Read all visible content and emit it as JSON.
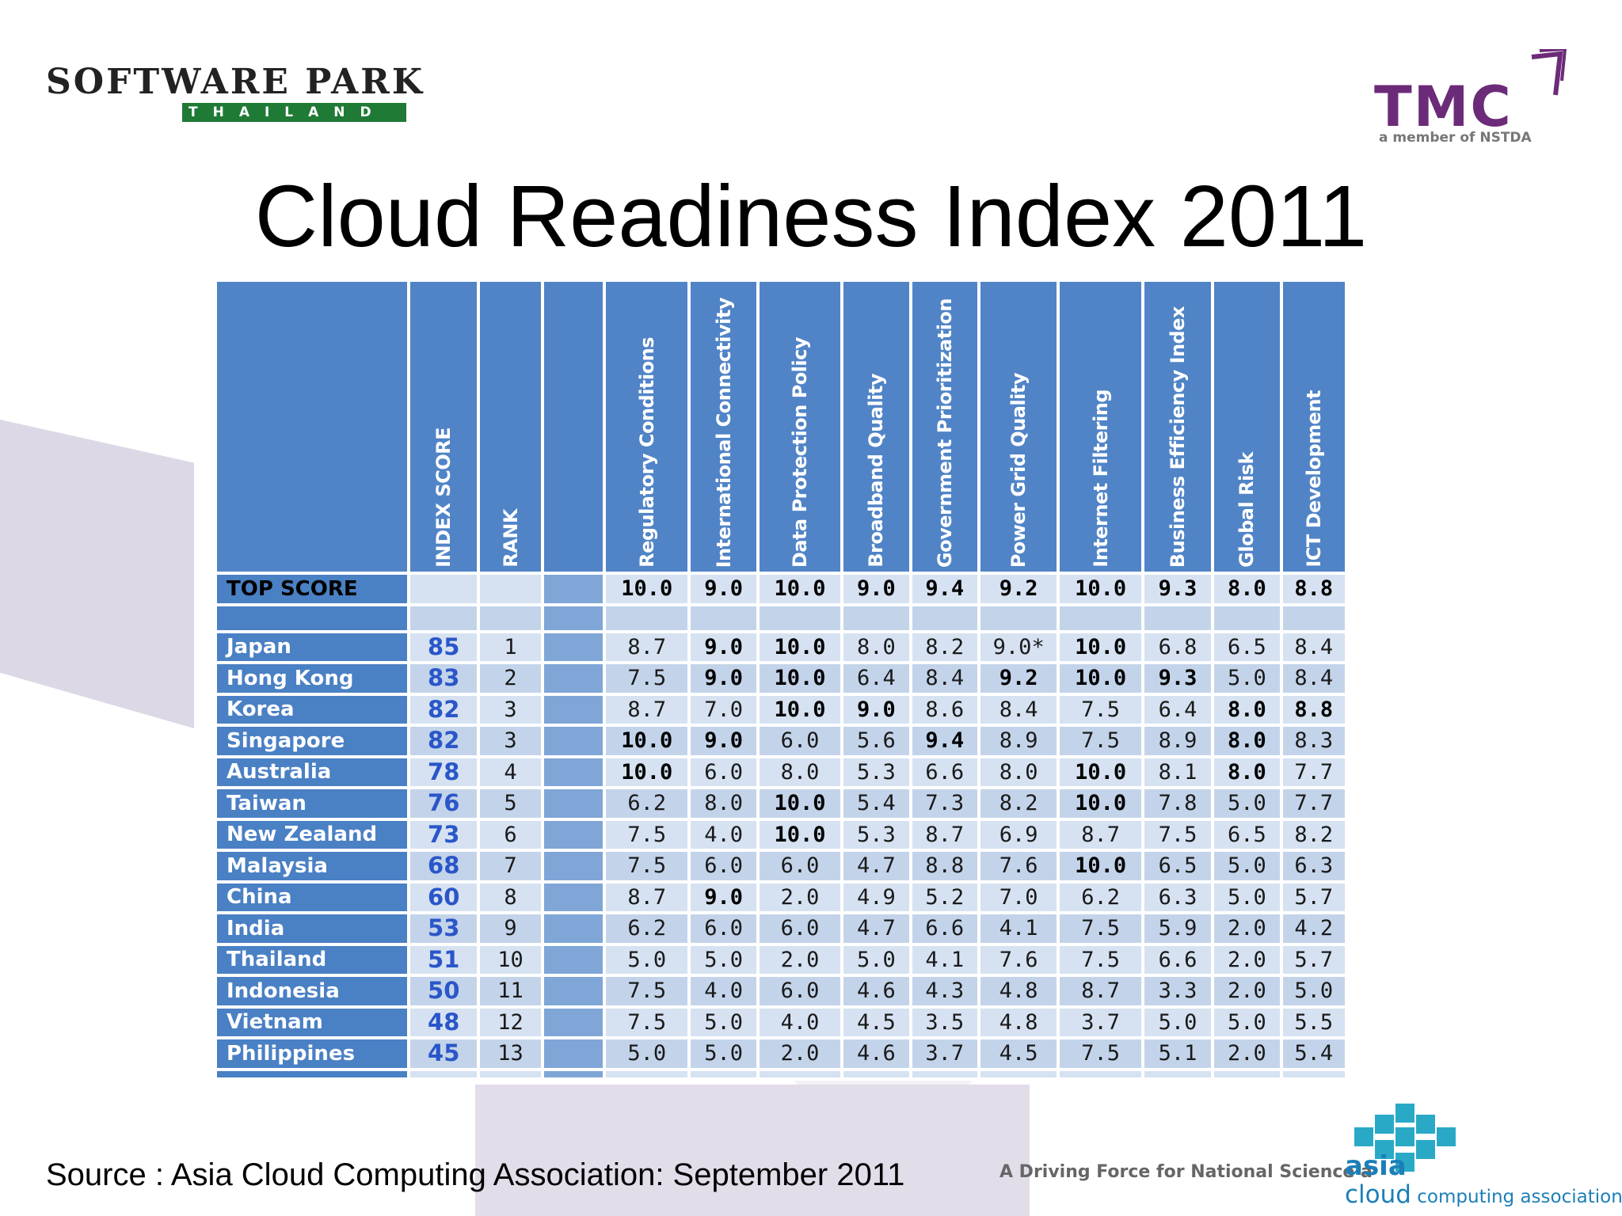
{
  "title": "Cloud Readiness Index 2011",
  "logos": {
    "software_park": {
      "main": "SOFTWARE PARK",
      "sub": "THAILAND"
    },
    "tmc": {
      "word": "TMC",
      "sub": "a member of NSTDA"
    },
    "acca": {
      "asia": "asia",
      "cloud": "cloud",
      "rest": " computing association"
    }
  },
  "table": {
    "headers": [
      "INDEX SCORE",
      "RANK",
      "",
      "Regulatory Conditions",
      "International Connectivity",
      "Data Protection Policy",
      "Broadband Quality",
      "Government Prioritization",
      "Power Grid Quality",
      "Internet Filtering",
      "Business Efficiency Index",
      "Global Risk",
      "ICT Development"
    ],
    "top_score": {
      "label": "TOP SCORE",
      "values": [
        "10.0",
        "9.0",
        "10.0",
        "9.0",
        "9.4",
        "9.2",
        "10.0",
        "9.3",
        "8.0",
        "8.8"
      ]
    },
    "rows": [
      {
        "country": "Japan",
        "score": "85",
        "rank": "1",
        "values": [
          "8.7",
          "9.0",
          "10.0",
          "8.0",
          "8.2",
          "9.0*",
          "10.0",
          "6.8",
          "6.5",
          "8.4"
        ]
      },
      {
        "country": "Hong Kong",
        "score": "83",
        "rank": "2",
        "values": [
          "7.5",
          "9.0",
          "10.0",
          "6.4",
          "8.4",
          "9.2",
          "10.0",
          "9.3",
          "5.0",
          "8.4"
        ]
      },
      {
        "country": "Korea",
        "score": "82",
        "rank": "3",
        "values": [
          "8.7",
          "7.0",
          "10.0",
          "9.0",
          "8.6",
          "8.4",
          "7.5",
          "6.4",
          "8.0",
          "8.8"
        ]
      },
      {
        "country": "Singapore",
        "score": "82",
        "rank": "3",
        "values": [
          "10.0",
          "9.0",
          "6.0",
          "5.6",
          "9.4",
          "8.9",
          "7.5",
          "8.9",
          "8.0",
          "8.3"
        ]
      },
      {
        "country": "Australia",
        "score": "78",
        "rank": "4",
        "values": [
          "10.0",
          "6.0",
          "8.0",
          "5.3",
          "6.6",
          "8.0",
          "10.0",
          "8.1",
          "8.0",
          "7.7"
        ]
      },
      {
        "country": "Taiwan",
        "score": "76",
        "rank": "5",
        "values": [
          "6.2",
          "8.0",
          "10.0",
          "5.4",
          "7.3",
          "8.2",
          "10.0",
          "7.8",
          "5.0",
          "7.7"
        ]
      },
      {
        "country": "New Zealand",
        "score": "73",
        "rank": "6",
        "values": [
          "7.5",
          "4.0",
          "10.0",
          "5.3",
          "8.7",
          "6.9",
          "8.7",
          "7.5",
          "6.5",
          "8.2"
        ]
      },
      {
        "country": "Malaysia",
        "score": "68",
        "rank": "7",
        "values": [
          "7.5",
          "6.0",
          "6.0",
          "4.7",
          "8.8",
          "7.6",
          "10.0",
          "6.5",
          "5.0",
          "6.3"
        ]
      },
      {
        "country": "China",
        "score": "60",
        "rank": "8",
        "values": [
          "8.7",
          "9.0",
          "2.0",
          "4.9",
          "5.2",
          "7.0",
          "6.2",
          "6.3",
          "5.0",
          "5.7"
        ]
      },
      {
        "country": "India",
        "score": "53",
        "rank": "9",
        "values": [
          "6.2",
          "6.0",
          "6.0",
          "4.7",
          "6.6",
          "4.1",
          "7.5",
          "5.9",
          "2.0",
          "4.2"
        ]
      },
      {
        "country": "Thailand",
        "score": "51",
        "rank": "10",
        "values": [
          "5.0",
          "5.0",
          "2.0",
          "5.0",
          "4.1",
          "7.6",
          "7.5",
          "6.6",
          "2.0",
          "5.7"
        ]
      },
      {
        "country": "Indonesia",
        "score": "50",
        "rank": "11",
        "values": [
          "7.5",
          "4.0",
          "6.0",
          "4.6",
          "4.3",
          "4.8",
          "8.7",
          "3.3",
          "2.0",
          "5.0"
        ]
      },
      {
        "country": "Vietnam",
        "score": "48",
        "rank": "12",
        "values": [
          "7.5",
          "5.0",
          "4.0",
          "4.5",
          "3.5",
          "4.8",
          "3.7",
          "5.0",
          "5.0",
          "5.5"
        ]
      },
      {
        "country": "Philippines",
        "score": "45",
        "rank": "13",
        "values": [
          "5.0",
          "5.0",
          "2.0",
          "4.6",
          "3.7",
          "4.5",
          "7.5",
          "5.1",
          "2.0",
          "5.4"
        ]
      }
    ]
  },
  "source": "Source :  Asia Cloud Computing Association: September 2011",
  "tagline": "A Driving Force for National Science a"
}
